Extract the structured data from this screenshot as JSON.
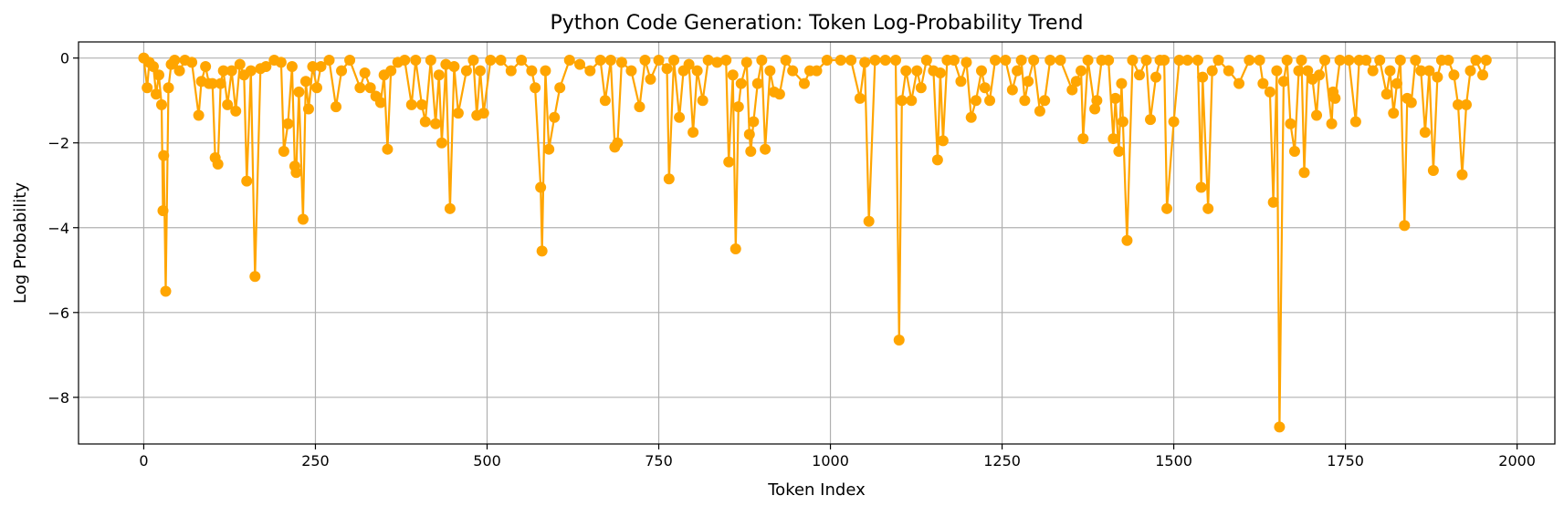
{
  "chart_data": {
    "type": "line",
    "title": "Python Code Generation: Token Log-Probability Trend",
    "xlabel": "Token Index",
    "ylabel": "Log Probability",
    "xlim": [
      -95,
      2055
    ],
    "ylim": [
      -9.1,
      0.38
    ],
    "x_ticks": [
      0,
      250,
      500,
      750,
      1000,
      1250,
      1500,
      1750,
      2000
    ],
    "x_tick_labels": [
      "0",
      "250",
      "500",
      "750",
      "1000",
      "1250",
      "1500",
      "1750",
      "2000"
    ],
    "y_ticks": [
      0,
      -2,
      -4,
      -6,
      -8
    ],
    "y_tick_labels": [
      "0",
      "−2",
      "−4",
      "−6",
      "−8"
    ],
    "grid": true,
    "legend": "none",
    "marker": "circle",
    "color": "#FFA500",
    "series": [
      {
        "points": [
          [
            0,
            0
          ],
          [
            5,
            -0.7
          ],
          [
            8,
            -0.1
          ],
          [
            14,
            -0.2
          ],
          [
            18,
            -0.85
          ],
          [
            22,
            -0.4
          ],
          [
            26,
            -1.1
          ],
          [
            28,
            -3.6
          ],
          [
            29,
            -2.3
          ],
          [
            32,
            -5.5
          ],
          [
            36,
            -0.7
          ],
          [
            40,
            -0.15
          ],
          [
            45,
            -0.05
          ],
          [
            52,
            -0.3
          ],
          [
            60,
            -0.05
          ],
          [
            70,
            -0.1
          ],
          [
            80,
            -1.35
          ],
          [
            84,
            -0.55
          ],
          [
            90,
            -0.2
          ],
          [
            95,
            -0.6
          ],
          [
            100,
            -0.6
          ],
          [
            104,
            -2.35
          ],
          [
            108,
            -2.5
          ],
          [
            112,
            -0.6
          ],
          [
            116,
            -0.3
          ],
          [
            122,
            -1.1
          ],
          [
            128,
            -0.3
          ],
          [
            134,
            -1.25
          ],
          [
            140,
            -0.15
          ],
          [
            146,
            -0.4
          ],
          [
            150,
            -2.9
          ],
          [
            156,
            -0.3
          ],
          [
            162,
            -5.15
          ],
          [
            170,
            -0.25
          ],
          [
            178,
            -0.2
          ],
          [
            190,
            -0.05
          ],
          [
            200,
            -0.1
          ],
          [
            204,
            -2.2
          ],
          [
            210,
            -1.55
          ],
          [
            216,
            -0.2
          ],
          [
            220,
            -2.55
          ],
          [
            222,
            -2.7
          ],
          [
            226,
            -0.8
          ],
          [
            232,
            -3.8
          ],
          [
            236,
            -0.55
          ],
          [
            240,
            -1.2
          ],
          [
            246,
            -0.2
          ],
          [
            252,
            -0.7
          ],
          [
            258,
            -0.2
          ],
          [
            270,
            -0.05
          ],
          [
            280,
            -1.15
          ],
          [
            288,
            -0.3
          ],
          [
            300,
            -0.05
          ],
          [
            315,
            -0.7
          ],
          [
            322,
            -0.35
          ],
          [
            330,
            -0.7
          ],
          [
            338,
            -0.9
          ],
          [
            345,
            -1.05
          ],
          [
            350,
            -0.4
          ],
          [
            355,
            -2.15
          ],
          [
            360,
            -0.3
          ],
          [
            370,
            -0.1
          ],
          [
            380,
            -0.05
          ],
          [
            390,
            -1.1
          ],
          [
            396,
            -0.05
          ],
          [
            405,
            -1.1
          ],
          [
            410,
            -1.5
          ],
          [
            418,
            -0.05
          ],
          [
            425,
            -1.55
          ],
          [
            430,
            -0.4
          ],
          [
            434,
            -2.0
          ],
          [
            440,
            -0.15
          ],
          [
            446,
            -3.55
          ],
          [
            452,
            -0.2
          ],
          [
            458,
            -1.3
          ],
          [
            470,
            -0.3
          ],
          [
            480,
            -0.05
          ],
          [
            485,
            -1.35
          ],
          [
            490,
            -0.3
          ],
          [
            495,
            -1.3
          ],
          [
            505,
            -0.05
          ],
          [
            520,
            -0.05
          ],
          [
            535,
            -0.3
          ],
          [
            550,
            -0.05
          ],
          [
            565,
            -0.3
          ],
          [
            570,
            -0.7
          ],
          [
            578,
            -3.05
          ],
          [
            580,
            -4.55
          ],
          [
            585,
            -0.3
          ],
          [
            590,
            -2.15
          ],
          [
            598,
            -1.4
          ],
          [
            606,
            -0.7
          ],
          [
            620,
            -0.05
          ],
          [
            635,
            -0.15
          ],
          [
            650,
            -0.3
          ],
          [
            665,
            -0.05
          ],
          [
            672,
            -1.0
          ],
          [
            680,
            -0.05
          ],
          [
            686,
            -2.1
          ],
          [
            690,
            -2.0
          ],
          [
            696,
            -0.1
          ],
          [
            710,
            -0.3
          ],
          [
            722,
            -1.15
          ],
          [
            730,
            -0.05
          ],
          [
            738,
            -0.5
          ],
          [
            750,
            -0.05
          ],
          [
            762,
            -0.25
          ],
          [
            765,
            -2.85
          ],
          [
            772,
            -0.05
          ],
          [
            780,
            -1.4
          ],
          [
            786,
            -0.3
          ],
          [
            794,
            -0.15
          ],
          [
            800,
            -1.75
          ],
          [
            806,
            -0.3
          ],
          [
            814,
            -1.0
          ],
          [
            822,
            -0.05
          ],
          [
            835,
            -0.1
          ],
          [
            848,
            -0.05
          ],
          [
            852,
            -2.45
          ],
          [
            858,
            -0.4
          ],
          [
            862,
            -4.5
          ],
          [
            866,
            -1.15
          ],
          [
            870,
            -0.6
          ],
          [
            878,
            -0.1
          ],
          [
            882,
            -1.8
          ],
          [
            884,
            -2.2
          ],
          [
            888,
            -1.5
          ],
          [
            894,
            -0.6
          ],
          [
            900,
            -0.05
          ],
          [
            905,
            -2.15
          ],
          [
            912,
            -0.3
          ],
          [
            918,
            -0.8
          ],
          [
            926,
            -0.85
          ],
          [
            935,
            -0.05
          ],
          [
            945,
            -0.3
          ],
          [
            962,
            -0.6
          ],
          [
            970,
            -0.3
          ],
          [
            980,
            -0.3
          ],
          [
            995,
            -0.05
          ],
          [
            1015,
            -0.05
          ],
          [
            1030,
            -0.05
          ],
          [
            1043,
            -0.95
          ],
          [
            1050,
            -0.1
          ],
          [
            1056,
            -3.85
          ],
          [
            1065,
            -0.05
          ],
          [
            1080,
            -0.05
          ],
          [
            1095,
            -0.05
          ],
          [
            1100,
            -6.65
          ],
          [
            1104,
            -1.0
          ],
          [
            1110,
            -0.3
          ],
          [
            1118,
            -1.0
          ],
          [
            1126,
            -0.3
          ],
          [
            1132,
            -0.7
          ],
          [
            1140,
            -0.05
          ],
          [
            1150,
            -0.3
          ],
          [
            1156,
            -2.4
          ],
          [
            1160,
            -0.35
          ],
          [
            1164,
            -1.95
          ],
          [
            1170,
            -0.05
          ],
          [
            1180,
            -0.05
          ],
          [
            1190,
            -0.55
          ],
          [
            1198,
            -0.1
          ],
          [
            1205,
            -1.4
          ],
          [
            1212,
            -1.0
          ],
          [
            1220,
            -0.3
          ],
          [
            1225,
            -0.7
          ],
          [
            1232,
            -1.0
          ],
          [
            1240,
            -0.05
          ],
          [
            1255,
            -0.05
          ],
          [
            1265,
            -0.75
          ],
          [
            1272,
            -0.3
          ],
          [
            1278,
            -0.05
          ],
          [
            1283,
            -1.0
          ],
          [
            1288,
            -0.55
          ],
          [
            1296,
            -0.05
          ],
          [
            1305,
            -1.25
          ],
          [
            1312,
            -1.0
          ],
          [
            1320,
            -0.05
          ],
          [
            1335,
            -0.05
          ],
          [
            1352,
            -0.75
          ],
          [
            1358,
            -0.55
          ],
          [
            1365,
            -0.3
          ],
          [
            1368,
            -1.9
          ],
          [
            1375,
            -0.05
          ],
          [
            1385,
            -1.2
          ],
          [
            1388,
            -1.0
          ],
          [
            1395,
            -0.05
          ],
          [
            1405,
            -0.05
          ],
          [
            1412,
            -1.9
          ],
          [
            1415,
            -0.95
          ],
          [
            1420,
            -2.2
          ],
          [
            1424,
            -0.6
          ],
          [
            1426,
            -1.5
          ],
          [
            1432,
            -4.3
          ],
          [
            1440,
            -0.05
          ],
          [
            1450,
            -0.4
          ],
          [
            1460,
            -0.05
          ],
          [
            1466,
            -1.45
          ],
          [
            1474,
            -0.45
          ],
          [
            1480,
            -0.05
          ],
          [
            1486,
            -0.05
          ],
          [
            1490,
            -3.55
          ],
          [
            1500,
            -1.5
          ],
          [
            1508,
            -0.05
          ],
          [
            1520,
            -0.05
          ],
          [
            1535,
            -0.05
          ],
          [
            1540,
            -3.05
          ],
          [
            1542,
            -0.45
          ],
          [
            1550,
            -3.55
          ],
          [
            1556,
            -0.3
          ],
          [
            1565,
            -0.05
          ],
          [
            1580,
            -0.3
          ],
          [
            1595,
            -0.6
          ],
          [
            1610,
            -0.05
          ],
          [
            1625,
            -0.05
          ],
          [
            1630,
            -0.6
          ],
          [
            1640,
            -0.8
          ],
          [
            1645,
            -3.4
          ],
          [
            1650,
            -0.3
          ],
          [
            1654,
            -8.7
          ],
          [
            1660,
            -0.55
          ],
          [
            1665,
            -0.05
          ],
          [
            1670,
            -1.55
          ],
          [
            1676,
            -2.2
          ],
          [
            1682,
            -0.3
          ],
          [
            1686,
            -0.05
          ],
          [
            1690,
            -2.7
          ],
          [
            1695,
            -0.3
          ],
          [
            1702,
            -0.5
          ],
          [
            1708,
            -1.35
          ],
          [
            1712,
            -0.4
          ],
          [
            1720,
            -0.05
          ],
          [
            1730,
            -1.55
          ],
          [
            1732,
            -0.8
          ],
          [
            1735,
            -0.95
          ],
          [
            1742,
            -0.05
          ],
          [
            1755,
            -0.05
          ],
          [
            1765,
            -1.5
          ],
          [
            1770,
            -0.05
          ],
          [
            1780,
            -0.05
          ],
          [
            1790,
            -0.3
          ],
          [
            1800,
            -0.05
          ],
          [
            1810,
            -0.85
          ],
          [
            1815,
            -0.3
          ],
          [
            1820,
            -1.3
          ],
          [
            1825,
            -0.6
          ],
          [
            1830,
            -0.05
          ],
          [
            1836,
            -3.95
          ],
          [
            1840,
            -0.95
          ],
          [
            1846,
            -1.05
          ],
          [
            1852,
            -0.05
          ],
          [
            1860,
            -0.3
          ],
          [
            1866,
            -1.75
          ],
          [
            1872,
            -0.3
          ],
          [
            1878,
            -2.65
          ],
          [
            1884,
            -0.45
          ],
          [
            1890,
            -0.05
          ],
          [
            1900,
            -0.05
          ],
          [
            1908,
            -0.4
          ],
          [
            1914,
            -1.1
          ],
          [
            1920,
            -2.75
          ],
          [
            1926,
            -1.1
          ],
          [
            1932,
            -0.3
          ],
          [
            1940,
            -0.05
          ],
          [
            1950,
            -0.4
          ],
          [
            1955,
            -0.05
          ]
        ]
      }
    ]
  }
}
